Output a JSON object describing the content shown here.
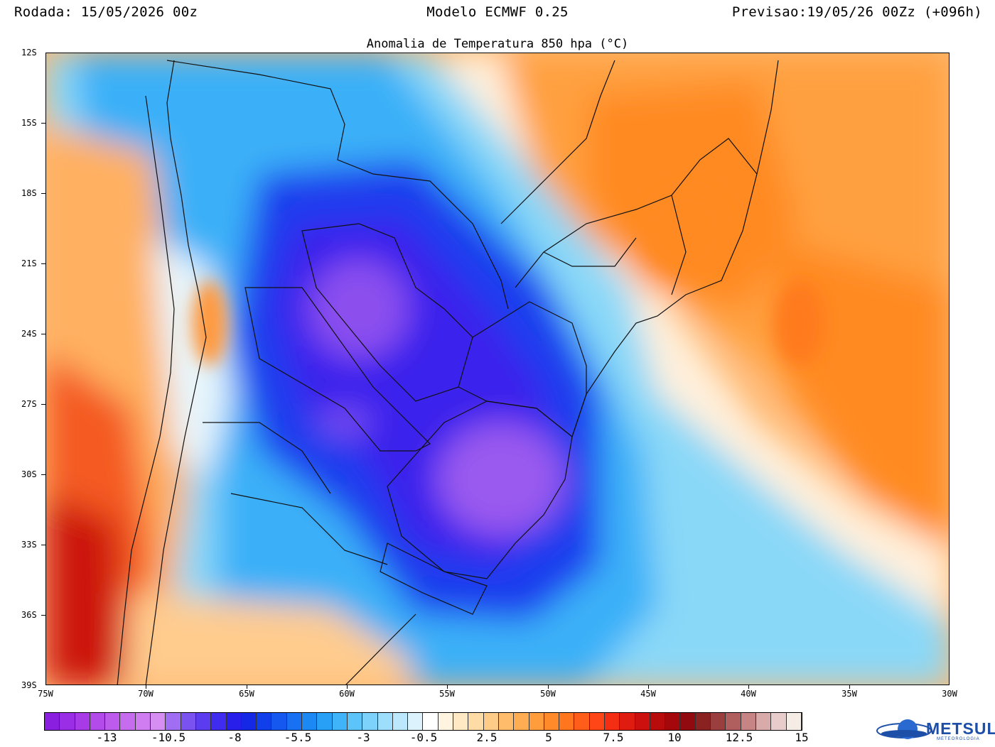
{
  "header": {
    "left": "Rodada: 15/05/2026 00z",
    "center": "Modelo ECMWF 0.25",
    "right": "Previsao:19/05/26 00Zz (+096h)"
  },
  "map": {
    "title": "Anomalia de Temperatura 850 hpa (°C)",
    "lat_labels": [
      "12S",
      "15S",
      "18S",
      "21S",
      "24S",
      "27S",
      "30S",
      "33S",
      "36S",
      "39S"
    ],
    "lon_labels": [
      "75W",
      "70W",
      "65W",
      "60W",
      "55W",
      "50W",
      "45W",
      "40W",
      "35W",
      "30W"
    ]
  },
  "colorbar": {
    "labels": [
      "-13",
      "-10.5",
      "-8",
      "-5.5",
      "-3",
      "-0.5",
      "2.5",
      "5",
      "7.5",
      "10",
      "12.5",
      "15"
    ],
    "colors": [
      "#8a1fe0",
      "#9a2de6",
      "#a83ae8",
      "#b34aea",
      "#bd5cec",
      "#c66cee",
      "#cf7df0",
      "#d68ef2",
      "#9f6ef2",
      "#7a52f0",
      "#5b3cef",
      "#3f2cee",
      "#2820ea",
      "#1428e6",
      "#1040ea",
      "#1458ef",
      "#1870f2",
      "#1c88f4",
      "#28a0f6",
      "#40b4f8",
      "#5cc4f9",
      "#7cd2fa",
      "#9cdefb",
      "#bce8fc",
      "#dcf3fd",
      "#ffffff",
      "#fff4e0",
      "#ffe8c4",
      "#ffdba6",
      "#ffcc88",
      "#ffbd6c",
      "#ffad52",
      "#ff9c3c",
      "#ff8a2a",
      "#ff761e",
      "#ff5e1a",
      "#ff4616",
      "#f42e12",
      "#e01c10",
      "#cc100e",
      "#b80c0c",
      "#a4080a",
      "#900a10",
      "#8a2222",
      "#9a3e3e",
      "#b05e5e",
      "#c68484",
      "#d8aaaa",
      "#e8cccc",
      "#f6ece6"
    ]
  },
  "logo": {
    "name": "METSUL",
    "sub": "METEOROLOGIA"
  }
}
